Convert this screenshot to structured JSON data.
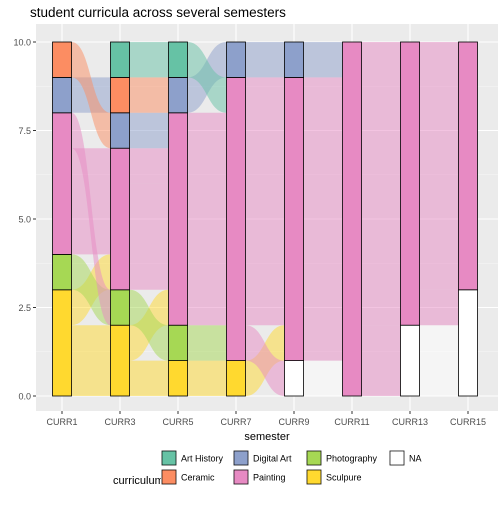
{
  "chart_data": {
    "type": "alluvial",
    "title": "student curricula across several semesters",
    "xlabel": "semester",
    "ylabel": "",
    "ylim": [
      0,
      10
    ],
    "y_ticks": [
      0.0,
      2.5,
      5.0,
      7.5,
      10.0
    ],
    "y_tick_labels": [
      "0.0",
      "2.5",
      "5.0",
      "7.5",
      "10.0"
    ],
    "categories": [
      "CURR1",
      "CURR3",
      "CURR5",
      "CURR7",
      "CURR9",
      "CURR11",
      "CURR13",
      "CURR15"
    ],
    "legend_title": "curriculum",
    "legend_position": "bottom",
    "grid": true,
    "colors": {
      "Art History": "#66C2A5",
      "Ceramic": "#FC8D62",
      "Digital Art": "#8DA0CB",
      "Painting": "#E78AC3",
      "Photography": "#A6D854",
      "Sculpure": "#FFD92F",
      "NA": "#FFFFFF"
    },
    "legend": [
      {
        "label": "Art History",
        "key": "Art History"
      },
      {
        "label": "Digital Art",
        "key": "Digital Art"
      },
      {
        "label": "Photography",
        "key": "Photography"
      },
      {
        "label": "NA",
        "key": "NA"
      },
      {
        "label": "Ceramic",
        "key": "Ceramic"
      },
      {
        "label": "Painting",
        "key": "Painting"
      },
      {
        "label": "Sculpure",
        "key": "Sculpure"
      }
    ],
    "stacks": [
      [
        {
          "c": "Sculpure",
          "n": 3
        },
        {
          "c": "Photography",
          "n": 1
        },
        {
          "c": "Painting",
          "n": 4
        },
        {
          "c": "Digital Art",
          "n": 1
        },
        {
          "c": "Ceramic",
          "n": 1
        }
      ],
      [
        {
          "c": "Sculpure",
          "n": 2
        },
        {
          "c": "Photography",
          "n": 1
        },
        {
          "c": "Painting",
          "n": 4
        },
        {
          "c": "Digital Art",
          "n": 1
        },
        {
          "c": "Ceramic",
          "n": 1
        },
        {
          "c": "Art History",
          "n": 1
        }
      ],
      [
        {
          "c": "Sculpure",
          "n": 1
        },
        {
          "c": "Photography",
          "n": 1
        },
        {
          "c": "Painting",
          "n": 6
        },
        {
          "c": "Digital Art",
          "n": 1
        },
        {
          "c": "Art History",
          "n": 1
        }
      ],
      [
        {
          "c": "Sculpure",
          "n": 1
        },
        {
          "c": "Painting",
          "n": 8
        },
        {
          "c": "Digital Art",
          "n": 1
        }
      ],
      [
        {
          "c": "NA",
          "n": 1
        },
        {
          "c": "Painting",
          "n": 8
        },
        {
          "c": "Digital Art",
          "n": 1
        }
      ],
      [
        {
          "c": "Painting",
          "n": 10
        }
      ],
      [
        {
          "c": "NA",
          "n": 2
        },
        {
          "c": "Painting",
          "n": 8
        }
      ],
      [
        {
          "c": "NA",
          "n": 3
        },
        {
          "c": "Painting",
          "n": 7
        }
      ]
    ],
    "flows": [
      [
        {
          "fc": "Sculpure",
          "fy": 0,
          "tc": "Sculpure",
          "ty": 0,
          "n": 2
        },
        {
          "fc": "Sculpure",
          "fy": 2,
          "tc": "Painting",
          "ty": 3,
          "n": 1
        },
        {
          "fc": "Photography",
          "fy": 3,
          "tc": "Photography",
          "ty": 2,
          "n": 1
        },
        {
          "fc": "Painting",
          "fy": 4,
          "tc": "Painting",
          "ty": 4,
          "n": 3
        },
        {
          "fc": "Painting",
          "fy": 7,
          "tc": "Sculpure",
          "ty": 2,
          "n": 1
        },
        {
          "fc": "Digital Art",
          "fy": 8,
          "tc": "Ceramic",
          "ty": 8,
          "n": 1
        },
        {
          "fc": "Ceramic",
          "fy": 9,
          "tc": "Digital Art",
          "ty": 7,
          "n": 1
        },
        {
          "fc": "Painting",
          "fy": 4,
          "tc": "Art History",
          "ty": 9,
          "n": 0
        }
      ],
      [
        {
          "fc": "Sculpure",
          "fy": 0,
          "tc": "Sculpure",
          "ty": 0,
          "n": 1
        },
        {
          "fc": "Sculpure",
          "fy": 1,
          "tc": "Painting",
          "ty": 2,
          "n": 1
        },
        {
          "fc": "Photography",
          "fy": 2,
          "tc": "Photography",
          "ty": 1,
          "n": 1
        },
        {
          "fc": "Painting",
          "fy": 3,
          "tc": "Painting",
          "ty": 3,
          "n": 3
        },
        {
          "fc": "Painting",
          "fy": 6,
          "tc": "Painting",
          "ty": 6,
          "n": 1
        },
        {
          "fc": "Digital Art",
          "fy": 7,
          "tc": "Painting",
          "ty": 7,
          "n": 1
        },
        {
          "fc": "Ceramic",
          "fy": 8,
          "tc": "Digital Art",
          "ty": 8,
          "n": 1
        },
        {
          "fc": "Art History",
          "fy": 9,
          "tc": "Art History",
          "ty": 9,
          "n": 1
        }
      ],
      [
        {
          "fc": "Sculpure",
          "fy": 0,
          "tc": "Sculpure",
          "ty": 0,
          "n": 1
        },
        {
          "fc": "Photography",
          "fy": 1,
          "tc": "Painting",
          "ty": 1,
          "n": 1
        },
        {
          "fc": "Painting",
          "fy": 2,
          "tc": "Painting",
          "ty": 2,
          "n": 6
        },
        {
          "fc": "Digital Art",
          "fy": 8,
          "tc": "Digital Art",
          "ty": 9,
          "n": 1
        },
        {
          "fc": "Art History",
          "fy": 9,
          "tc": "Painting",
          "ty": 8,
          "n": 1
        }
      ],
      [
        {
          "fc": "Sculpure",
          "fy": 0,
          "tc": "Painting",
          "ty": 1,
          "n": 1
        },
        {
          "fc": "Painting",
          "fy": 1,
          "tc": "NA",
          "ty": 0,
          "n": 1
        },
        {
          "fc": "Painting",
          "fy": 2,
          "tc": "Painting",
          "ty": 2,
          "n": 7
        },
        {
          "fc": "Digital Art",
          "fy": 9,
          "tc": "Digital Art",
          "ty": 9,
          "n": 1
        }
      ],
      [
        {
          "fc": "NA",
          "fy": 0,
          "tc": "Painting",
          "ty": 0,
          "n": 1
        },
        {
          "fc": "Painting",
          "fy": 1,
          "tc": "Painting",
          "ty": 1,
          "n": 8
        },
        {
          "fc": "Digital Art",
          "fy": 9,
          "tc": "Painting",
          "ty": 9,
          "n": 1
        }
      ],
      [
        {
          "fc": "Painting",
          "fy": 0,
          "tc": "NA",
          "ty": 0,
          "n": 2
        },
        {
          "fc": "Painting",
          "fy": 2,
          "tc": "Painting",
          "ty": 2,
          "n": 8
        }
      ],
      [
        {
          "fc": "NA",
          "fy": 0,
          "tc": "NA",
          "ty": 0,
          "n": 2
        },
        {
          "fc": "Painting",
          "fy": 2,
          "tc": "NA",
          "ty": 2,
          "n": 1
        },
        {
          "fc": "Painting",
          "fy": 3,
          "tc": "Painting",
          "ty": 3,
          "n": 7
        }
      ]
    ]
  }
}
